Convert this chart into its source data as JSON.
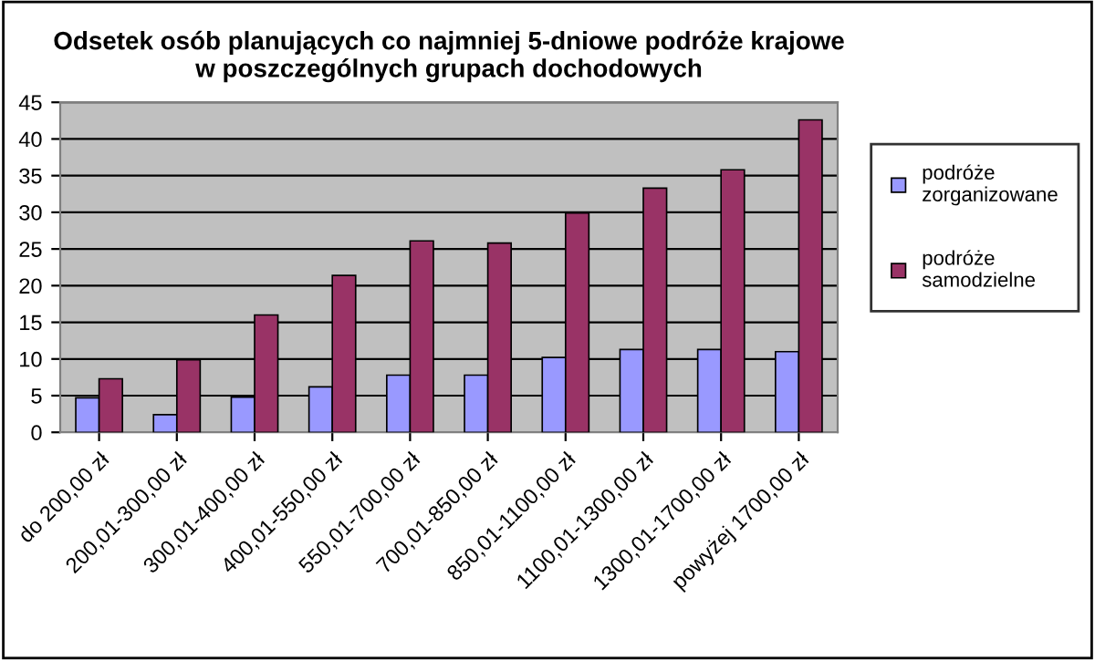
{
  "chart_data": {
    "type": "bar",
    "title": "Odsetek osób planujących co najmniej 5-dniowe podróże krajowe\nw poszczególnych grupach dochodowych",
    "categories": [
      "do 200,00 zł",
      "200,01-300,00 zł",
      "300,01-400,00 zł",
      "400,01-550,00 zł",
      "550,01-700,00 zł",
      "700,01-850,00 zł",
      "850,01-1100,00 zł",
      "1100,01-1300,00 zł",
      "1300,01-1700,00 zł",
      "powyżej 1700,00 zł"
    ],
    "series": [
      {
        "name": "podróże\nzorganizowane",
        "color": "#9999ff",
        "values": [
          4.7,
          2.4,
          4.8,
          6.2,
          7.8,
          7.8,
          10.2,
          11.3,
          11.3,
          11.0
        ]
      },
      {
        "name": "podróże\nsamodzielne",
        "color": "#993366",
        "values": [
          7.3,
          9.9,
          16.0,
          21.4,
          26.1,
          25.8,
          29.9,
          33.3,
          35.8,
          42.6
        ]
      }
    ],
    "ylim": [
      0,
      45
    ],
    "yticks": [
      0,
      5,
      10,
      15,
      20,
      25,
      30,
      35,
      40,
      45
    ],
    "grid": "y",
    "legend": "right"
  }
}
